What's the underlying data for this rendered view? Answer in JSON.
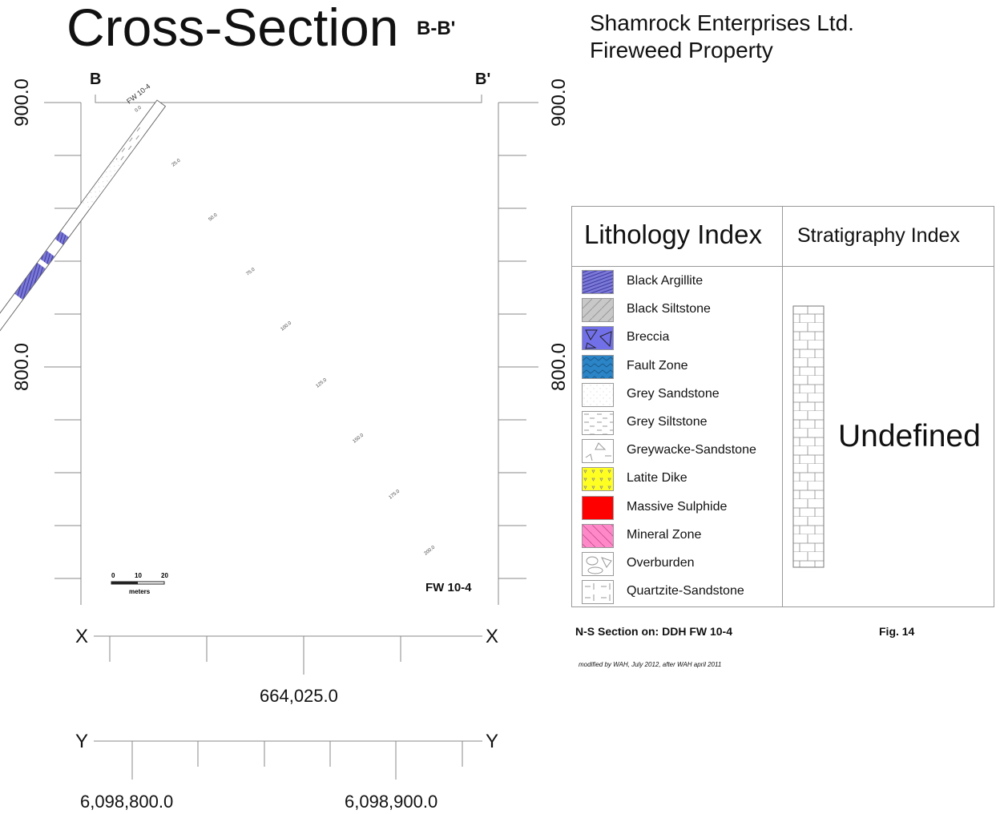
{
  "header": {
    "title": "Cross-Section",
    "section_id": "B-B'",
    "company": "Shamrock Enterprises Ltd.",
    "property": "Fireweed Property"
  },
  "section": {
    "start_mark": "B",
    "end_mark": "B'",
    "elevation_labels": [
      "900.0",
      "800.0"
    ],
    "drillhole_label_top": "FW 10-4",
    "drillhole_label_bottom": "FW 10-4",
    "depth_ticks": [
      "0.0",
      "25.0",
      "50.0",
      "75.0",
      "100.0",
      "125.0",
      "150.0",
      "175.0",
      "200.0"
    ],
    "scale_bar": {
      "ticks": [
        "0",
        "10",
        "20"
      ],
      "unit": "meters"
    }
  },
  "axes": {
    "x": {
      "letter": "X",
      "value": "664,025.0"
    },
    "y": {
      "letter": "Y",
      "values": [
        "6,098,800.0",
        "6,098,900.0"
      ]
    }
  },
  "legend": {
    "lithology_header": "Lithology Index",
    "stratigraphy_header": "Stratigraphy Index",
    "stratigraphy_value": "Undefined",
    "items": [
      {
        "label": "Black Argillite",
        "pattern": "argillite",
        "color": "#7b78d6"
      },
      {
        "label": "Black Siltstone",
        "pattern": "siltstone",
        "color": "#c8c8c8"
      },
      {
        "label": "Breccia",
        "pattern": "breccia",
        "color": "#7270e8"
      },
      {
        "label": "Fault Zone",
        "pattern": "fault",
        "color": "#2b84c6"
      },
      {
        "label": "Grey Sandstone",
        "pattern": "sandstone",
        "color": "#ffffff"
      },
      {
        "label": "Grey Siltstone",
        "pattern": "greysilt",
        "color": "#ffffff"
      },
      {
        "label": "Greywacke-Sandstone",
        "pattern": "greywacke",
        "color": "#ffffff"
      },
      {
        "label": "Latite Dike",
        "pattern": "latite",
        "color": "#ffff22"
      },
      {
        "label": "Massive Sulphide",
        "pattern": "sulphide",
        "color": "#ff0000"
      },
      {
        "label": "Mineral Zone",
        "pattern": "mineral",
        "color": "#ff88c8"
      },
      {
        "label": "Overburden",
        "pattern": "overburden",
        "color": "#ffffff"
      },
      {
        "label": "Quartzite-Sandstone",
        "pattern": "quartzite",
        "color": "#ffffff"
      }
    ]
  },
  "footer": {
    "section_note": "N-S Section on: DDH FW 10-4",
    "figure": "Fig. 14",
    "modified_note": "modified by WAH, July 2012, after WAH april 2011"
  }
}
